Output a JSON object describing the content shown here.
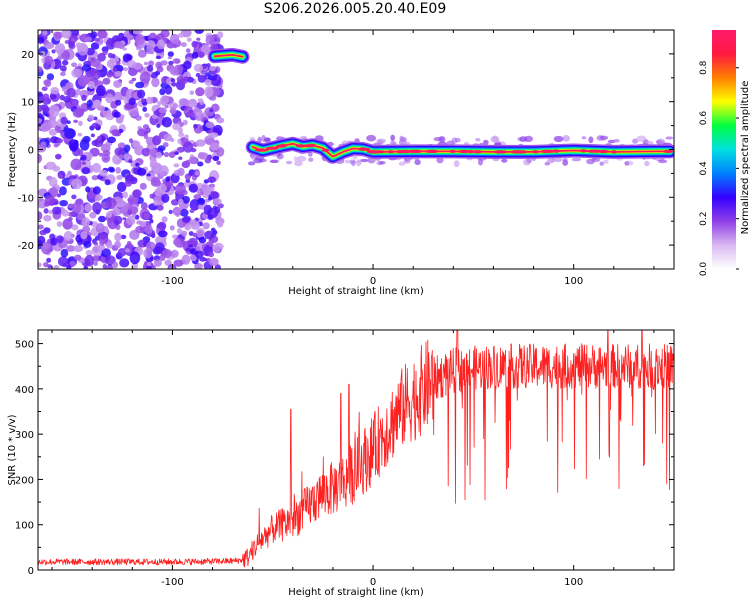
{
  "title": "S206.2026.005.20.40.E09",
  "chart_data": [
    {
      "type": "heatmap",
      "xlabel": "Height of straight line (km)",
      "ylabel": "Frequency (Hz)",
      "xlim": [
        -167,
        150
      ],
      "ylim": [
        -25,
        25
      ],
      "xticks": [
        -100,
        0,
        100
      ],
      "xtick_labels": [
        "-100",
        "0",
        "100"
      ],
      "yticks": [
        -20,
        -10,
        0,
        10,
        20
      ],
      "ytick_labels": [
        "-20",
        "-10",
        "0",
        "10",
        "20"
      ],
      "colorbar": {
        "label": "Normalized spectral amplitude",
        "range": [
          0,
          0.95
        ],
        "ticks": [
          0.0,
          0.2,
          0.4,
          0.6,
          0.8
        ],
        "tick_labels": [
          "0.0",
          "0.2",
          "0.4",
          "0.6",
          "0.8"
        ],
        "colors": [
          "#ffffff",
          "#d9b8f2",
          "#8f3fe6",
          "#3300ff",
          "#0080ff",
          "#00e0e0",
          "#00ff40",
          "#ffff00",
          "#ff8000",
          "#ff1a40",
          "#ff1a6e"
        ]
      },
      "signal_trace": {
        "description": "high amplitude frequency line",
        "x_km": [
          -79,
          -70,
          -65,
          -62,
          -60,
          -55,
          -50,
          -45,
          -40,
          -35,
          -30,
          -25,
          -22,
          -20,
          -15,
          -10,
          -5,
          0,
          20,
          40,
          60,
          80,
          100,
          120,
          140,
          148
        ],
        "freq_hz": [
          19.5,
          19.8,
          19.4,
          null,
          0.5,
          -0.2,
          0.3,
          0.8,
          1.2,
          0.6,
          0.9,
          0.3,
          -0.8,
          -1.5,
          -0.5,
          0.2,
          0.1,
          -0.5,
          -0.4,
          -0.4,
          -0.5,
          -0.5,
          -0.2,
          -0.5,
          -0.4,
          -0.4
        ]
      },
      "noise_region_x_km": [
        -167,
        -80
      ]
    },
    {
      "type": "line",
      "xlabel": "Height of straight line (km)",
      "ylabel": "SNR (10 * v/v)",
      "xlim": [
        -167,
        150
      ],
      "ylim": [
        0,
        530
      ],
      "xticks": [
        -100,
        0,
        100
      ],
      "xtick_labels": [
        "-100",
        "0",
        "100"
      ],
      "yticks": [
        0,
        100,
        200,
        300,
        400,
        500
      ],
      "ytick_labels": [
        "0",
        "100",
        "200",
        "300",
        "400",
        "500"
      ],
      "color": "#ff2020",
      "series": [
        {
          "name": "SNR",
          "x": [
            -167,
            -140,
            -120,
            -100,
            -80,
            -70,
            -65,
            -62,
            -60,
            -55,
            -50,
            -45,
            -40,
            -35,
            -30,
            -25,
            -20,
            -15,
            -10,
            -5,
            0,
            5,
            10,
            15,
            20,
            25,
            30,
            35,
            40,
            50,
            60,
            70,
            80,
            90,
            100,
            110,
            120,
            130,
            140,
            150
          ],
          "values": [
            18,
            18,
            18,
            18,
            19,
            20,
            22,
            30,
            45,
            70,
            90,
            100,
            110,
            130,
            150,
            170,
            180,
            195,
            215,
            240,
            265,
            300,
            330,
            360,
            380,
            400,
            420,
            430,
            440,
            445,
            450,
            450,
            450,
            450,
            450,
            450,
            450,
            450,
            450,
            450
          ]
        }
      ],
      "spikes": [
        {
          "x": -41,
          "peak": 355
        },
        {
          "x": -16,
          "peak": 390
        },
        {
          "x": -12,
          "peak": 410
        },
        {
          "x": 42,
          "peak": 530
        },
        {
          "x": 117,
          "peak": 530
        },
        {
          "x": 134,
          "peak": 530
        }
      ]
    }
  ]
}
